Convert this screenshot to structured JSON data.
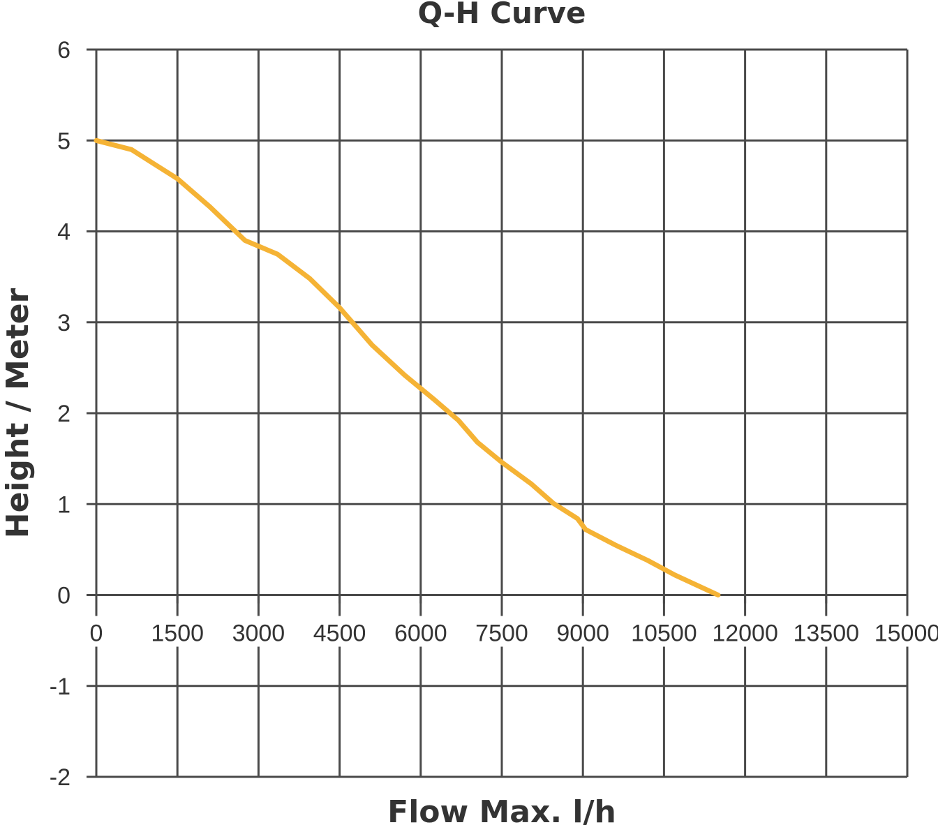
{
  "chart_data": {
    "type": "line",
    "title": "Q-H Curve",
    "xlabel": "Flow Max. l/h",
    "ylabel": "Height / Meter",
    "xlim": [
      0,
      15000
    ],
    "ylim": [
      -2,
      6
    ],
    "x_ticks": [
      "0",
      "1500",
      "3000",
      "4500",
      "6000",
      "7500",
      "9000",
      "10500",
      "12000",
      "13500",
      "15000"
    ],
    "y_ticks": [
      "6",
      "5",
      "4",
      "3",
      "2",
      "1",
      "0",
      "-1",
      "-2"
    ],
    "grid": true,
    "legend": "none",
    "series": [
      {
        "color": "#F5B335",
        "x": [
          0,
          650,
          1100,
          1500,
          2100,
          2750,
          3350,
          3950,
          4500,
          5100,
          5700,
          6250,
          6700,
          7050,
          7500,
          8050,
          8450,
          8900,
          9050,
          9600,
          10200,
          10700,
          11500
        ],
        "y": [
          5.0,
          4.9,
          4.73,
          4.58,
          4.27,
          3.9,
          3.75,
          3.48,
          3.16,
          2.75,
          2.42,
          2.15,
          1.92,
          1.68,
          1.46,
          1.22,
          1.01,
          0.84,
          0.72,
          0.55,
          0.38,
          0.22,
          0.0
        ]
      }
    ]
  }
}
